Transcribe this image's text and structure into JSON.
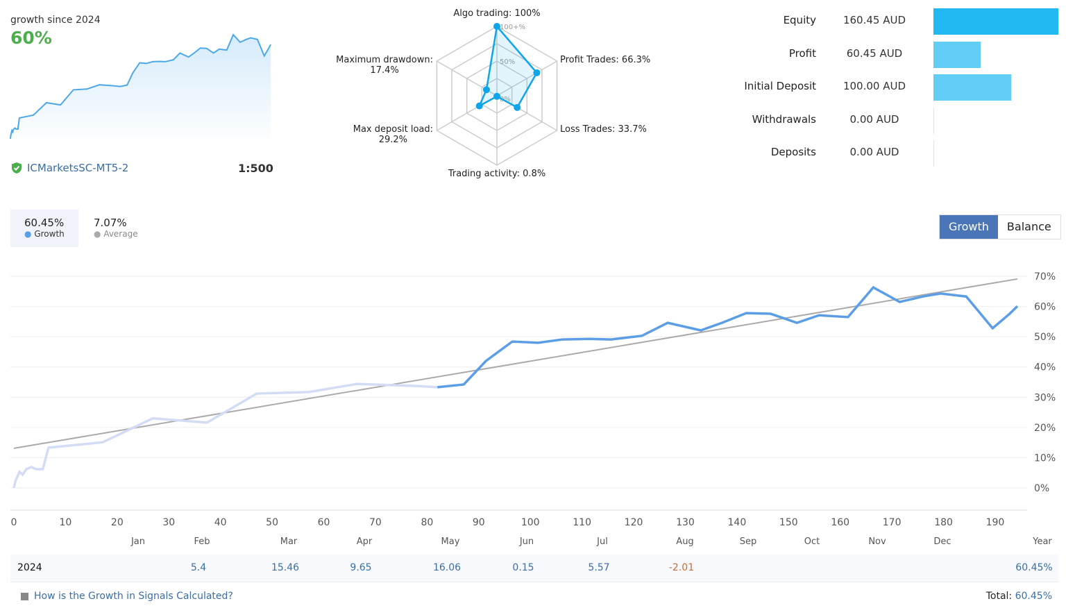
{
  "summary": {
    "growth_caption": "growth since 2024",
    "growth_value": "60%",
    "broker": "ICMarketsSC-MT5-2",
    "leverage": "1:500"
  },
  "radar": {
    "ring_labels": [
      "100+%",
      "50%",
      "0%"
    ],
    "axes": [
      {
        "label": "Algo trading: 100%",
        "value": 100
      },
      {
        "label": "Profit Trades: 66.3%",
        "value": 66.3
      },
      {
        "label": "Loss Trades: 33.7%",
        "value": 33.7
      },
      {
        "label": "Trading activity: 0.8%",
        "value": 0.8
      },
      {
        "label_line1": "Max deposit load:",
        "label_line2": "29.2%",
        "value": 29.2
      },
      {
        "label_line1": "Maximum drawdown:",
        "label_line2": "17.4%",
        "value": 17.4
      }
    ],
    "color": "#0ea5e9"
  },
  "financials": [
    {
      "label": "Equity",
      "value": "160.45 AUD",
      "amount": 160.45,
      "color": "#22b8f0"
    },
    {
      "label": "Profit",
      "value": "60.45 AUD",
      "amount": 60.45,
      "color": "#62cdf5"
    },
    {
      "label": "Initial Deposit",
      "value": "100.00 AUD",
      "amount": 100.0,
      "color": "#62cdf5"
    },
    {
      "label": "Withdrawals",
      "value": "0.00 AUD",
      "amount": 0,
      "color": "#62cdf5"
    },
    {
      "label": "Deposits",
      "value": "0.00 AUD",
      "amount": 0,
      "color": "#62cdf5"
    }
  ],
  "legend": {
    "growth_value": "60.45%",
    "growth_label": "Growth",
    "average_value": "7.07%",
    "average_label": "Average"
  },
  "tabs": {
    "growth": "Growth",
    "balance": "Balance"
  },
  "chart_data": {
    "type": "line",
    "xlim": [
      0,
      195
    ],
    "ylim": [
      0,
      70
    ],
    "x_ticks": [
      0,
      10,
      20,
      30,
      40,
      50,
      60,
      70,
      80,
      90,
      100,
      110,
      120,
      130,
      140,
      150,
      160,
      170,
      180,
      190
    ],
    "y_ticks": [
      "0%",
      "10%",
      "20%",
      "30%",
      "40%",
      "50%",
      "60%",
      "70%"
    ],
    "grid": true,
    "series": [
      {
        "name": "Growth",
        "color": "#5b9ee6",
        "faded_color": "#d3dcf5",
        "faded_until_x": 78,
        "x": [
          0,
          0.3,
          1.1,
          1.7,
          2.4,
          3.4,
          4.3,
          5.6,
          6.7,
          17.2,
          26.9,
          37.4,
          47.0,
          57.1,
          66.5,
          77.9,
          82.0,
          87.1,
          91.4,
          96.5,
          101.5,
          106.2,
          111.5,
          115.6,
          121.6,
          126.6,
          133.0,
          137.1,
          141.8,
          146.5,
          151.6,
          155.9,
          161.5,
          166.4,
          171.5,
          176.0,
          179.4,
          184.4,
          189.5,
          192.8,
          194.3
        ],
        "y": [
          0,
          2.3,
          5.3,
          4.4,
          6.2,
          6.9,
          6.2,
          6.2,
          13.3,
          15.1,
          23.0,
          21.6,
          31.2,
          31.7,
          34.4,
          33.7,
          33.3,
          34.2,
          42.0,
          48.4,
          48.0,
          49.1,
          49.3,
          49.1,
          50.3,
          54.6,
          52.1,
          54.6,
          57.8,
          57.6,
          54.6,
          57.1,
          56.5,
          66.3,
          61.5,
          63.3,
          64.3,
          63.3,
          52.8,
          57.6,
          60.1
        ]
      },
      {
        "name": "Average",
        "type": "trend",
        "color": "#aaaaaa",
        "x": [
          0,
          194.3
        ],
        "y": [
          13.1,
          69.1
        ]
      }
    ]
  },
  "monthly": {
    "headers": [
      "Jan",
      "Feb",
      "Mar",
      "Apr",
      "May",
      "Jun",
      "Jul",
      "Aug",
      "Sep",
      "Oct",
      "Nov",
      "Dec",
      "Year"
    ],
    "year": "2024",
    "values": [
      "",
      "5.4",
      "15.46",
      "9.65",
      "16.06",
      "0.15",
      "5.57",
      "-2.01",
      "",
      "",
      "",
      "",
      "60.45%"
    ],
    "negative_color": "#c0703a"
  },
  "footer": {
    "link": "How is the Growth in Signals Calculated?",
    "total_label": "Total:",
    "total_value": "60.45%"
  }
}
